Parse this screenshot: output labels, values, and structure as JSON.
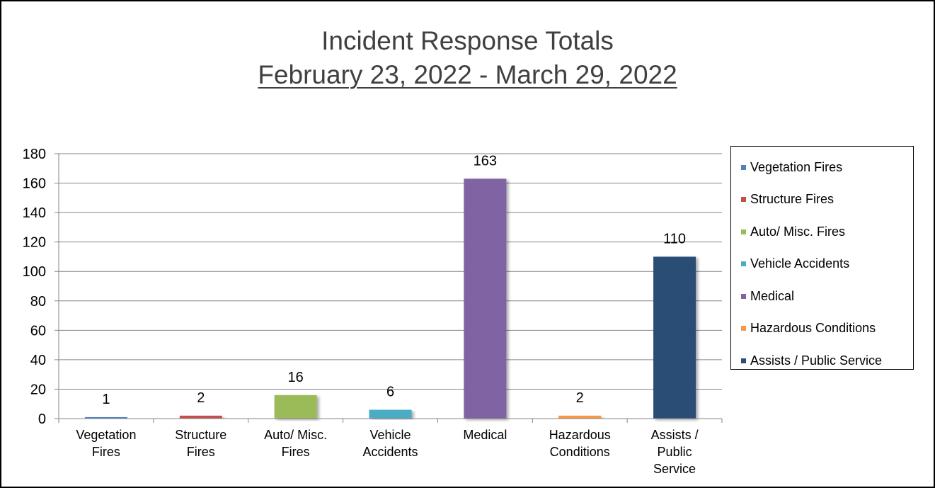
{
  "title": "Incident Response Totals",
  "subtitle": "February 23, 2022 - March 29, 2022",
  "chart_data": {
    "type": "bar",
    "title": "Incident Response Totals",
    "subtitle": "February 23, 2022 - March 29, 2022",
    "categories": [
      "Vegetation Fires",
      "Structure Fires",
      "Auto/ Misc. Fires",
      "Vehicle Accidents",
      "Medical",
      "Hazardous Conditions",
      "Assists / Public Service"
    ],
    "category_tick_labels": [
      [
        "Vegetation",
        "Fires"
      ],
      [
        "Structure",
        "Fires"
      ],
      [
        "Auto/ Misc.",
        "Fires"
      ],
      [
        "Vehicle",
        "Accidents"
      ],
      [
        "Medical"
      ],
      [
        "Hazardous",
        "Conditions"
      ],
      [
        "Assists /",
        "Public",
        "Service"
      ]
    ],
    "values": [
      1,
      2,
      16,
      6,
      163,
      2,
      110
    ],
    "colors": [
      "#4f81bd",
      "#c0504d",
      "#9bbb59",
      "#4bacc6",
      "#8064a2",
      "#f79646",
      "#2c4d75"
    ],
    "ylim": [
      0,
      180
    ],
    "yticks": [
      0,
      20,
      40,
      60,
      80,
      100,
      120,
      140,
      160,
      180
    ],
    "grid": true,
    "legend_position": "right",
    "legend": [
      "Vegetation Fires",
      "Structure Fires",
      "Auto/ Misc. Fires",
      "Vehicle Accidents",
      "Medical",
      "Hazardous Conditions",
      "Assists / Public Service"
    ]
  }
}
